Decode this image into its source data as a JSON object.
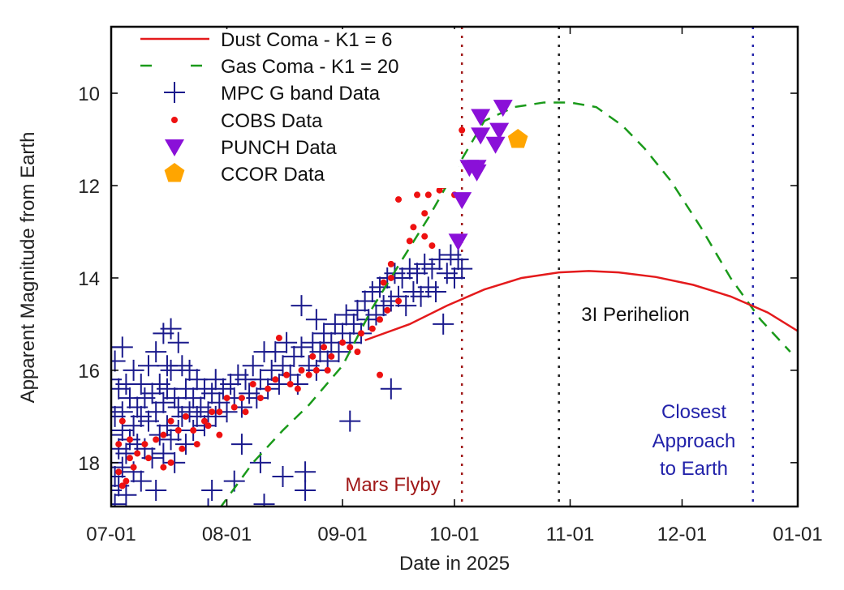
{
  "chart_data": {
    "type": "scatter",
    "title": "",
    "xlabel": "Date in 2025",
    "ylabel": "Apparent Magnitude from Earth",
    "x_units": "days since 2025-07-01",
    "xlim": [
      0,
      184
    ],
    "ylim": [
      18.95,
      8.56
    ],
    "y_inverted": true,
    "grid": false,
    "legend_position": "top-left",
    "x_ticks": [
      {
        "day": 0,
        "label": "07-01"
      },
      {
        "day": 31,
        "label": "08-01"
      },
      {
        "day": 62,
        "label": "09-01"
      },
      {
        "day": 92,
        "label": "10-01"
      },
      {
        "day": 123,
        "label": "11-01"
      },
      {
        "day": 153,
        "label": "12-01"
      },
      {
        "day": 184,
        "label": "01-01"
      }
    ],
    "y_ticks": [
      {
        "value": 10,
        "label": "10"
      },
      {
        "value": 12,
        "label": "12"
      },
      {
        "value": 14,
        "label": "14"
      },
      {
        "value": 16,
        "label": "16"
      },
      {
        "value": 18,
        "label": "18"
      }
    ],
    "colors": {
      "dust": "#e41a1c",
      "gas": "#1a9a1a",
      "mpc": "#1a1a8c",
      "cobs": "#ee1111",
      "punch": "#8a10d8",
      "ccor": "#ffa500",
      "mars": "#a01818",
      "perihelion": "#222222",
      "closest": "#2222aa"
    },
    "legend": [
      {
        "key": "dust",
        "label": "Dust Coma - K1 = 6"
      },
      {
        "key": "gas",
        "label": "Gas Coma - K1 = 20"
      },
      {
        "key": "mpc",
        "label": "MPC G band Data"
      },
      {
        "key": "cobs",
        "label": "COBS Data"
      },
      {
        "key": "punch",
        "label": "PUNCH Data"
      },
      {
        "key": "ccor",
        "label": "CCOR Data"
      }
    ],
    "series": [
      {
        "name": "Dust Coma - K1 = 6",
        "type": "line",
        "style": "solid",
        "points": [
          [
            68,
            15.35
          ],
          [
            80,
            15.0
          ],
          [
            90,
            14.6
          ],
          [
            100,
            14.25
          ],
          [
            110,
            14.0
          ],
          [
            120,
            13.88
          ],
          [
            128,
            13.85
          ],
          [
            136,
            13.88
          ],
          [
            146,
            13.98
          ],
          [
            156,
            14.15
          ],
          [
            166,
            14.4
          ],
          [
            176,
            14.75
          ],
          [
            184,
            15.15
          ]
        ]
      },
      {
        "name": "Gas Coma - K1 = 20",
        "type": "line",
        "style": "dashed",
        "points": [
          [
            29,
            19.0
          ],
          [
            38,
            18.0
          ],
          [
            46,
            17.3
          ],
          [
            53,
            16.75
          ],
          [
            62,
            15.9
          ],
          [
            70,
            14.65
          ],
          [
            78,
            13.6
          ],
          [
            85,
            12.7
          ],
          [
            92,
            11.7
          ],
          [
            100,
            10.6
          ],
          [
            108,
            10.3
          ],
          [
            116,
            10.2
          ],
          [
            123,
            10.2
          ],
          [
            130,
            10.3
          ],
          [
            137,
            10.7
          ],
          [
            143,
            11.2
          ],
          [
            150,
            11.9
          ],
          [
            158,
            12.9
          ],
          [
            166,
            14.0
          ],
          [
            174,
            14.9
          ],
          [
            182,
            15.6
          ]
        ]
      },
      {
        "name": "MPC G band Data",
        "type": "scatter",
        "marker": "plus",
        "points": [
          [
            0,
            15.5
          ],
          [
            0,
            16.2
          ],
          [
            0,
            16.8
          ],
          [
            0,
            17.4
          ],
          [
            0,
            18.0
          ],
          [
            0,
            18.6
          ],
          [
            1,
            15.8
          ],
          [
            1,
            17.0
          ],
          [
            1,
            18.3
          ],
          [
            1,
            18.9
          ],
          [
            2,
            16.4
          ],
          [
            2,
            17.7
          ],
          [
            2,
            18.5
          ],
          [
            3,
            15.5
          ],
          [
            3,
            16.9
          ],
          [
            3,
            17.3
          ],
          [
            3,
            18.1
          ],
          [
            4,
            16.3
          ],
          [
            4,
            17.8
          ],
          [
            4,
            18.7
          ],
          [
            5,
            16.6
          ],
          [
            5,
            17.5
          ],
          [
            6,
            16.0
          ],
          [
            6,
            17.2
          ],
          [
            6,
            18.2
          ],
          [
            7,
            16.8
          ],
          [
            7,
            17.6
          ],
          [
            8,
            16.3
          ],
          [
            8,
            17.0
          ],
          [
            8,
            18.4
          ],
          [
            9,
            16.6
          ],
          [
            9,
            17.7
          ],
          [
            10,
            15.9
          ],
          [
            10,
            17.1
          ],
          [
            11,
            16.5
          ],
          [
            11,
            17.9
          ],
          [
            12,
            15.6
          ],
          [
            12,
            16.9
          ],
          [
            12,
            18.6
          ],
          [
            13,
            16.3
          ],
          [
            13,
            17.4
          ],
          [
            14,
            15.2
          ],
          [
            14,
            16.7
          ],
          [
            14,
            17.8
          ],
          [
            15,
            15.9
          ],
          [
            15,
            16.4
          ],
          [
            15,
            17.2
          ],
          [
            16,
            15.1
          ],
          [
            16,
            16.0
          ],
          [
            16,
            17.5
          ],
          [
            17,
            16.6
          ],
          [
            17,
            18.0
          ],
          [
            18,
            15.4
          ],
          [
            18,
            16.8
          ],
          [
            18,
            17.3
          ],
          [
            19,
            15.9
          ],
          [
            19,
            17.0
          ],
          [
            20,
            16.4
          ],
          [
            20,
            17.6
          ],
          [
            21,
            16.0
          ],
          [
            21,
            16.9
          ],
          [
            22,
            16.6
          ],
          [
            22,
            17.3
          ],
          [
            23,
            16.2
          ],
          [
            23,
            17.0
          ],
          [
            24,
            16.8
          ],
          [
            25,
            16.4
          ],
          [
            25,
            17.2
          ],
          [
            26,
            16.9
          ],
          [
            27,
            16.5
          ],
          [
            28,
            16.2
          ],
          [
            28,
            17.0
          ],
          [
            29,
            16.7
          ],
          [
            30,
            16.4
          ],
          [
            31,
            16.9
          ],
          [
            32,
            16.3
          ],
          [
            33,
            16.6
          ],
          [
            34,
            16.1
          ],
          [
            35,
            16.8
          ],
          [
            36,
            16.2
          ],
          [
            37,
            16.5
          ],
          [
            38,
            15.9
          ],
          [
            39,
            16.6
          ],
          [
            40,
            16.2
          ],
          [
            41,
            15.6
          ],
          [
            42,
            16.4
          ],
          [
            43,
            16.0
          ],
          [
            44,
            15.6
          ],
          [
            45,
            16.3
          ],
          [
            46,
            15.9
          ],
          [
            47,
            15.4
          ],
          [
            48,
            16.1
          ],
          [
            49,
            15.7
          ],
          [
            50,
            16.3
          ],
          [
            51,
            14.6
          ],
          [
            51,
            15.5
          ],
          [
            52,
            18.2
          ],
          [
            52,
            18.6
          ],
          [
            53,
            15.9
          ],
          [
            54,
            15.4
          ],
          [
            55,
            14.9
          ],
          [
            55,
            16.0
          ],
          [
            56,
            15.6
          ],
          [
            57,
            15.2
          ],
          [
            58,
            15.8
          ],
          [
            59,
            15.4
          ],
          [
            60,
            15.0
          ],
          [
            61,
            15.6
          ],
          [
            62,
            15.2
          ],
          [
            63,
            14.8
          ],
          [
            64,
            15.4
          ],
          [
            64,
            17.1
          ],
          [
            65,
            15.0
          ],
          [
            66,
            14.7
          ],
          [
            67,
            15.2
          ],
          [
            68,
            14.5
          ],
          [
            69,
            14.9
          ],
          [
            70,
            14.3
          ],
          [
            71,
            14.8
          ],
          [
            72,
            14.2
          ],
          [
            73,
            14.6
          ],
          [
            74,
            14.0
          ],
          [
            75,
            16.4
          ],
          [
            75,
            14.5
          ],
          [
            76,
            13.9
          ],
          [
            77,
            14.4
          ],
          [
            78,
            14.0
          ],
          [
            79,
            14.6
          ],
          [
            80,
            13.8
          ],
          [
            81,
            14.3
          ],
          [
            82,
            13.9
          ],
          [
            83,
            14.4
          ],
          [
            84,
            13.7
          ],
          [
            85,
            14.2
          ],
          [
            86,
            13.8
          ],
          [
            87,
            14.3
          ],
          [
            88,
            13.6
          ],
          [
            89,
            15.0
          ],
          [
            90,
            13.9
          ],
          [
            91,
            13.5
          ],
          [
            92,
            14.0
          ],
          [
            93,
            13.6
          ],
          [
            94,
            13.8
          ],
          [
            27,
            18.6
          ],
          [
            33,
            18.4
          ],
          [
            40,
            18.0
          ],
          [
            46,
            18.3
          ],
          [
            26,
            19.0
          ],
          [
            41,
            18.9
          ],
          [
            35,
            17.6
          ]
        ]
      },
      {
        "name": "COBS Data",
        "type": "scatter",
        "marker": "dot",
        "points": [
          [
            94,
            10.8
          ],
          [
            92,
            12.2
          ],
          [
            89,
            12.0
          ],
          [
            88,
            12.1
          ],
          [
            85,
            12.2
          ],
          [
            84,
            12.6
          ],
          [
            82,
            12.2
          ],
          [
            77,
            12.3
          ],
          [
            84,
            13.1
          ],
          [
            86,
            13.3
          ],
          [
            80,
            13.2
          ],
          [
            81,
            12.9
          ],
          [
            75,
            13.7
          ],
          [
            73,
            14.1
          ],
          [
            75,
            14.0
          ],
          [
            77,
            14.5
          ],
          [
            74,
            14.7
          ],
          [
            72,
            14.9
          ],
          [
            70,
            15.1
          ],
          [
            72,
            16.1
          ],
          [
            67,
            15.2
          ],
          [
            64,
            15.5
          ],
          [
            62,
            15.4
          ],
          [
            59,
            15.7
          ],
          [
            57,
            15.5
          ],
          [
            55,
            16.0
          ],
          [
            53,
            16.1
          ],
          [
            51,
            16.0
          ],
          [
            48,
            16.3
          ],
          [
            45,
            15.3
          ],
          [
            44,
            16.2
          ],
          [
            42,
            16.4
          ],
          [
            40,
            16.6
          ],
          [
            38,
            16.3
          ],
          [
            35,
            16.6
          ],
          [
            33,
            16.8
          ],
          [
            31,
            16.6
          ],
          [
            29,
            16.9
          ],
          [
            27,
            16.9
          ],
          [
            25,
            17.1
          ],
          [
            22,
            17.3
          ],
          [
            20,
            17.0
          ],
          [
            18,
            17.3
          ],
          [
            16,
            17.1
          ],
          [
            14,
            17.4
          ],
          [
            12,
            17.5
          ],
          [
            9,
            17.6
          ],
          [
            7,
            17.8
          ],
          [
            5,
            17.5
          ],
          [
            3,
            17.1
          ],
          [
            2,
            18.2
          ],
          [
            3,
            18.5
          ],
          [
            5,
            17.9
          ],
          [
            6,
            18.1
          ],
          [
            14,
            18.1
          ],
          [
            16,
            18.0
          ],
          [
            19,
            17.7
          ],
          [
            23,
            17.6
          ],
          [
            29,
            17.4
          ],
          [
            47,
            16.1
          ],
          [
            54,
            15.7
          ],
          [
            2,
            17.6
          ],
          [
            4,
            18.4
          ],
          [
            10,
            17.9
          ],
          [
            26,
            17.2
          ],
          [
            36,
            16.9
          ],
          [
            50,
            16.4
          ],
          [
            58,
            16.0
          ],
          [
            66,
            15.6
          ]
        ]
      },
      {
        "name": "PUNCH Data",
        "type": "scatter",
        "marker": "triangle-down",
        "points": [
          [
            94,
            12.3
          ],
          [
            93,
            13.2
          ],
          [
            96,
            11.6
          ],
          [
            98,
            11.6
          ],
          [
            99,
            10.5
          ],
          [
            105,
            10.3
          ],
          [
            99,
            10.9
          ],
          [
            103,
            11.1
          ],
          [
            104,
            10.8
          ],
          [
            98,
            11.7
          ]
        ]
      },
      {
        "name": "CCOR Data",
        "type": "scatter",
        "marker": "pentagon",
        "points": [
          [
            109,
            11.0
          ]
        ]
      }
    ],
    "vertical_lines": [
      {
        "day": 94,
        "color_key": "mars",
        "label": "Mars Flyby"
      },
      {
        "day": 120,
        "color_key": "perihelion",
        "label": "3I Perihelion"
      },
      {
        "day": 172,
        "color_key": "closest",
        "label_lines": [
          "Closest",
          "Approach",
          "to Earth"
        ]
      }
    ]
  }
}
